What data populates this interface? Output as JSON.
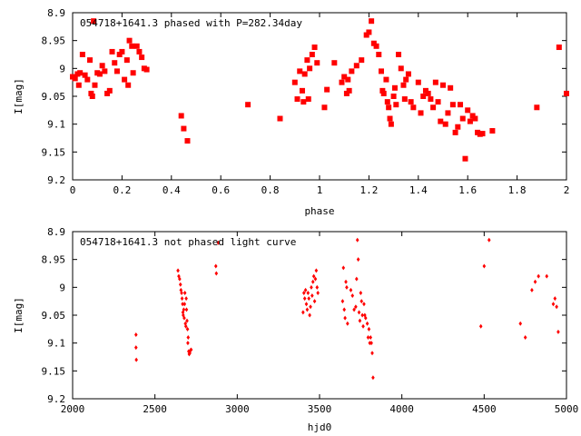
{
  "colors": {
    "points": "#ff0000",
    "axes": "#000000",
    "background": "#ffffff"
  },
  "chart_data": [
    {
      "type": "scatter",
      "title": "054718+1641.3 phased with P=282.34day",
      "xlabel": "phase",
      "ylabel": "I[mag]",
      "xlim": [
        0,
        2
      ],
      "ylim": [
        8.9,
        9.2
      ],
      "y_inverted": true,
      "xticks": [
        "0",
        "0.2",
        "0.4",
        "0.6",
        "0.8",
        "1",
        "1.2",
        "1.4",
        "1.6",
        "1.8",
        "2"
      ],
      "yticks": [
        "8.9",
        "8.95",
        "9",
        "9.05",
        "9.1",
        "9.15",
        "9.2"
      ],
      "marker": "filled-square",
      "points": [
        [
          0.0,
          9.015
        ],
        [
          0.01,
          9.018
        ],
        [
          0.02,
          9.01
        ],
        [
          0.025,
          9.03
        ],
        [
          0.03,
          9.008
        ],
        [
          0.04,
          8.975
        ],
        [
          0.05,
          9.012
        ],
        [
          0.06,
          9.02
        ],
        [
          0.07,
          8.985
        ],
        [
          0.075,
          9.045
        ],
        [
          0.08,
          9.05
        ],
        [
          0.085,
          8.915
        ],
        [
          0.09,
          9.03
        ],
        [
          0.1,
          9.008
        ],
        [
          0.11,
          9.01
        ],
        [
          0.12,
          8.995
        ],
        [
          0.13,
          9.005
        ],
        [
          0.14,
          9.045
        ],
        [
          0.15,
          9.04
        ],
        [
          0.16,
          8.97
        ],
        [
          0.17,
          8.99
        ],
        [
          0.18,
          9.005
        ],
        [
          0.19,
          8.975
        ],
        [
          0.2,
          8.97
        ],
        [
          0.21,
          9.02
        ],
        [
          0.22,
          8.985
        ],
        [
          0.225,
          9.03
        ],
        [
          0.23,
          8.95
        ],
        [
          0.24,
          8.96
        ],
        [
          0.245,
          9.008
        ],
        [
          0.26,
          8.96
        ],
        [
          0.27,
          8.97
        ],
        [
          0.28,
          8.98
        ],
        [
          0.29,
          9.0
        ],
        [
          0.3,
          9.002
        ],
        [
          0.44,
          9.085
        ],
        [
          0.45,
          9.108
        ],
        [
          0.465,
          9.13
        ],
        [
          0.71,
          9.065
        ],
        [
          0.84,
          9.09
        ],
        [
          0.9,
          9.025
        ],
        [
          0.91,
          9.055
        ],
        [
          0.92,
          9.005
        ],
        [
          0.93,
          9.04
        ],
        [
          0.935,
          9.06
        ],
        [
          0.94,
          9.01
        ],
        [
          0.95,
          8.985
        ],
        [
          0.955,
          9.055
        ],
        [
          0.96,
          9.0
        ],
        [
          0.97,
          8.975
        ],
        [
          0.98,
          8.962
        ],
        [
          0.99,
          8.99
        ],
        [
          1.02,
          9.07
        ],
        [
          1.03,
          9.038
        ],
        [
          1.06,
          8.99
        ],
        [
          1.09,
          9.025
        ],
        [
          1.1,
          9.015
        ],
        [
          1.11,
          9.045
        ],
        [
          1.115,
          9.02
        ],
        [
          1.12,
          9.04
        ],
        [
          1.13,
          9.005
        ],
        [
          1.15,
          8.995
        ],
        [
          1.17,
          8.985
        ],
        [
          1.19,
          8.94
        ],
        [
          1.2,
          8.935
        ],
        [
          1.21,
          8.915
        ],
        [
          1.22,
          8.955
        ],
        [
          1.23,
          8.96
        ],
        [
          1.24,
          8.975
        ],
        [
          1.25,
          9.005
        ],
        [
          1.255,
          9.04
        ],
        [
          1.26,
          9.045
        ],
        [
          1.27,
          9.02
        ],
        [
          1.275,
          9.06
        ],
        [
          1.28,
          9.07
        ],
        [
          1.285,
          9.09
        ],
        [
          1.29,
          9.1
        ],
        [
          1.3,
          9.05
        ],
        [
          1.305,
          9.035
        ],
        [
          1.31,
          9.065
        ],
        [
          1.32,
          8.975
        ],
        [
          1.33,
          9.0
        ],
        [
          1.34,
          9.03
        ],
        [
          1.345,
          9.055
        ],
        [
          1.35,
          9.02
        ],
        [
          1.36,
          9.01
        ],
        [
          1.37,
          9.06
        ],
        [
          1.38,
          9.07
        ],
        [
          1.4,
          9.025
        ],
        [
          1.41,
          9.08
        ],
        [
          1.42,
          9.05
        ],
        [
          1.43,
          9.04
        ],
        [
          1.44,
          9.045
        ],
        [
          1.45,
          9.055
        ],
        [
          1.46,
          9.07
        ],
        [
          1.47,
          9.025
        ],
        [
          1.48,
          9.06
        ],
        [
          1.49,
          9.095
        ],
        [
          1.5,
          9.03
        ],
        [
          1.51,
          9.1
        ],
        [
          1.52,
          9.08
        ],
        [
          1.53,
          9.035
        ],
        [
          1.54,
          9.065
        ],
        [
          1.55,
          9.115
        ],
        [
          1.56,
          9.105
        ],
        [
          1.57,
          9.065
        ],
        [
          1.58,
          9.09
        ],
        [
          1.59,
          9.162
        ],
        [
          1.6,
          9.075
        ],
        [
          1.61,
          9.095
        ],
        [
          1.62,
          9.085
        ],
        [
          1.63,
          9.09
        ],
        [
          1.64,
          9.115
        ],
        [
          1.65,
          9.118
        ],
        [
          1.66,
          9.117
        ],
        [
          1.7,
          9.112
        ],
        [
          1.88,
          9.07
        ],
        [
          1.97,
          8.962
        ],
        [
          2.0,
          9.045
        ]
      ]
    },
    {
      "type": "scatter",
      "title": "054718+1641.3 not phased light curve",
      "xlabel": "hjd0",
      "ylabel": "I[mag]",
      "xlim": [
        2000,
        5000
      ],
      "ylim": [
        8.9,
        9.2
      ],
      "y_inverted": true,
      "xticks": [
        "2000",
        "2500",
        "3000",
        "3500",
        "4000",
        "4500",
        "5000"
      ],
      "yticks": [
        "8.9",
        "8.95",
        "9",
        "9.05",
        "9.1",
        "9.15",
        "9.2"
      ],
      "marker": "small-diamond",
      "points": [
        [
          2385,
          9.085
        ],
        [
          2385,
          9.108
        ],
        [
          2387,
          9.13
        ],
        [
          2640,
          8.97
        ],
        [
          2645,
          8.98
        ],
        [
          2650,
          8.985
        ],
        [
          2655,
          8.995
        ],
        [
          2658,
          9.005
        ],
        [
          2662,
          9.01
        ],
        [
          2665,
          9.02
        ],
        [
          2668,
          9.03
        ],
        [
          2670,
          9.045
        ],
        [
          2672,
          9.05
        ],
        [
          2675,
          9.04
        ],
        [
          2678,
          9.055
        ],
        [
          2680,
          9.03
        ],
        [
          2682,
          9.01
        ],
        [
          2685,
          9.065
        ],
        [
          2688,
          9.07
        ],
        [
          2690,
          9.02
        ],
        [
          2692,
          9.04
        ],
        [
          2695,
          9.06
        ],
        [
          2698,
          9.075
        ],
        [
          2700,
          9.1
        ],
        [
          2702,
          9.09
        ],
        [
          2705,
          9.115
        ],
        [
          2708,
          9.12
        ],
        [
          2712,
          9.118
        ],
        [
          2716,
          9.113
        ],
        [
          2720,
          9.112
        ],
        [
          2870,
          8.962
        ],
        [
          2873,
          8.975
        ],
        [
          2885,
          8.92
        ],
        [
          3400,
          9.045
        ],
        [
          3405,
          9.01
        ],
        [
          3410,
          9.02
        ],
        [
          3415,
          9.005
        ],
        [
          3420,
          9.03
        ],
        [
          3425,
          9.04
        ],
        [
          3430,
          9.01
        ],
        [
          3435,
          9.02
        ],
        [
          3440,
          9.05
        ],
        [
          3445,
          9.035
        ],
        [
          3450,
          9.0
        ],
        [
          3455,
          9.015
        ],
        [
          3460,
          8.99
        ],
        [
          3465,
          8.98
        ],
        [
          3470,
          9.025
        ],
        [
          3475,
          8.985
        ],
        [
          3480,
          8.97
        ],
        [
          3485,
          9.0
        ],
        [
          3490,
          9.01
        ],
        [
          3640,
          9.025
        ],
        [
          3645,
          8.965
        ],
        [
          3650,
          9.04
        ],
        [
          3655,
          9.055
        ],
        [
          3660,
          8.99
        ],
        [
          3665,
          9.0
        ],
        [
          3670,
          9.065
        ],
        [
          3690,
          9.005
        ],
        [
          3700,
          9.015
        ],
        [
          3710,
          9.04
        ],
        [
          3720,
          9.035
        ],
        [
          3725,
          8.985
        ],
        [
          3730,
          8.915
        ],
        [
          3735,
          8.95
        ],
        [
          3740,
          9.045
        ],
        [
          3745,
          9.06
        ],
        [
          3750,
          9.01
        ],
        [
          3755,
          9.025
        ],
        [
          3760,
          9.05
        ],
        [
          3765,
          9.07
        ],
        [
          3770,
          9.03
        ],
        [
          3775,
          9.05
        ],
        [
          3780,
          9.055
        ],
        [
          3790,
          9.065
        ],
        [
          3795,
          9.09
        ],
        [
          3800,
          9.075
        ],
        [
          3805,
          9.1
        ],
        [
          3810,
          9.09
        ],
        [
          3815,
          9.1
        ],
        [
          3820,
          9.118
        ],
        [
          3825,
          9.162
        ],
        [
          4480,
          9.07
        ],
        [
          4500,
          8.962
        ],
        [
          4530,
          8.915
        ],
        [
          4720,
          9.065
        ],
        [
          4750,
          9.09
        ],
        [
          4790,
          9.005
        ],
        [
          4810,
          8.99
        ],
        [
          4830,
          8.98
        ],
        [
          4880,
          8.98
        ],
        [
          4920,
          9.03
        ],
        [
          4930,
          9.02
        ],
        [
          4940,
          9.035
        ],
        [
          4950,
          9.08
        ]
      ]
    }
  ]
}
